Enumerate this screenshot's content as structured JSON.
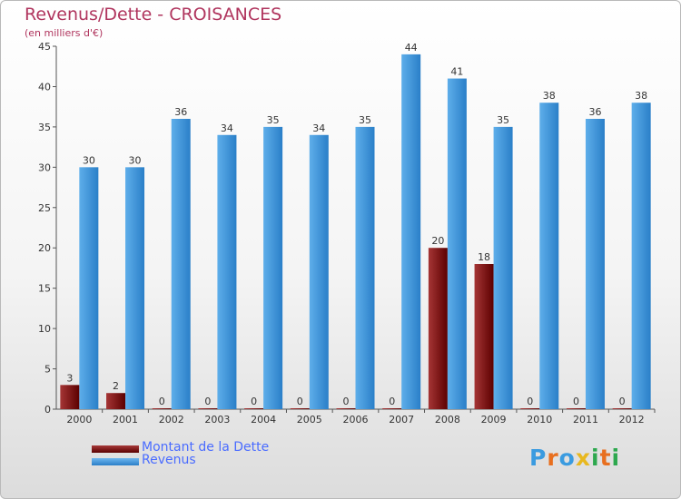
{
  "header": {
    "title": "Revenus/Dette - CROISANCES",
    "subtitle": "(en milliers d'€)"
  },
  "logo": {
    "text": "Proxiti"
  },
  "colors": {
    "debt": "#7b1010",
    "revenue": "#3d93db",
    "title": "#b0355e",
    "legend_text": "#4a6cff"
  },
  "chart_data": {
    "type": "bar",
    "title": "Revenus/Dette - CROISANCES",
    "subtitle": "(en milliers d'€)",
    "xlabel": "",
    "ylabel": "",
    "categories": [
      "2000",
      "2001",
      "2002",
      "2003",
      "2004",
      "2005",
      "2006",
      "2007",
      "2008",
      "2009",
      "2010",
      "2011",
      "2012"
    ],
    "series": [
      {
        "name": "Montant de la Dette",
        "values": [
          3,
          2,
          0,
          0,
          0,
          0,
          0,
          0,
          20,
          18,
          0,
          0,
          0
        ]
      },
      {
        "name": "Revenus",
        "values": [
          30,
          30,
          36,
          34,
          35,
          34,
          35,
          44,
          41,
          35,
          38,
          36,
          38
        ]
      }
    ],
    "ylim": [
      0,
      45
    ],
    "yticks": [
      0,
      5,
      10,
      15,
      20,
      25,
      30,
      35,
      40,
      45
    ],
    "grid": false,
    "legend_position": "bottom-left"
  }
}
